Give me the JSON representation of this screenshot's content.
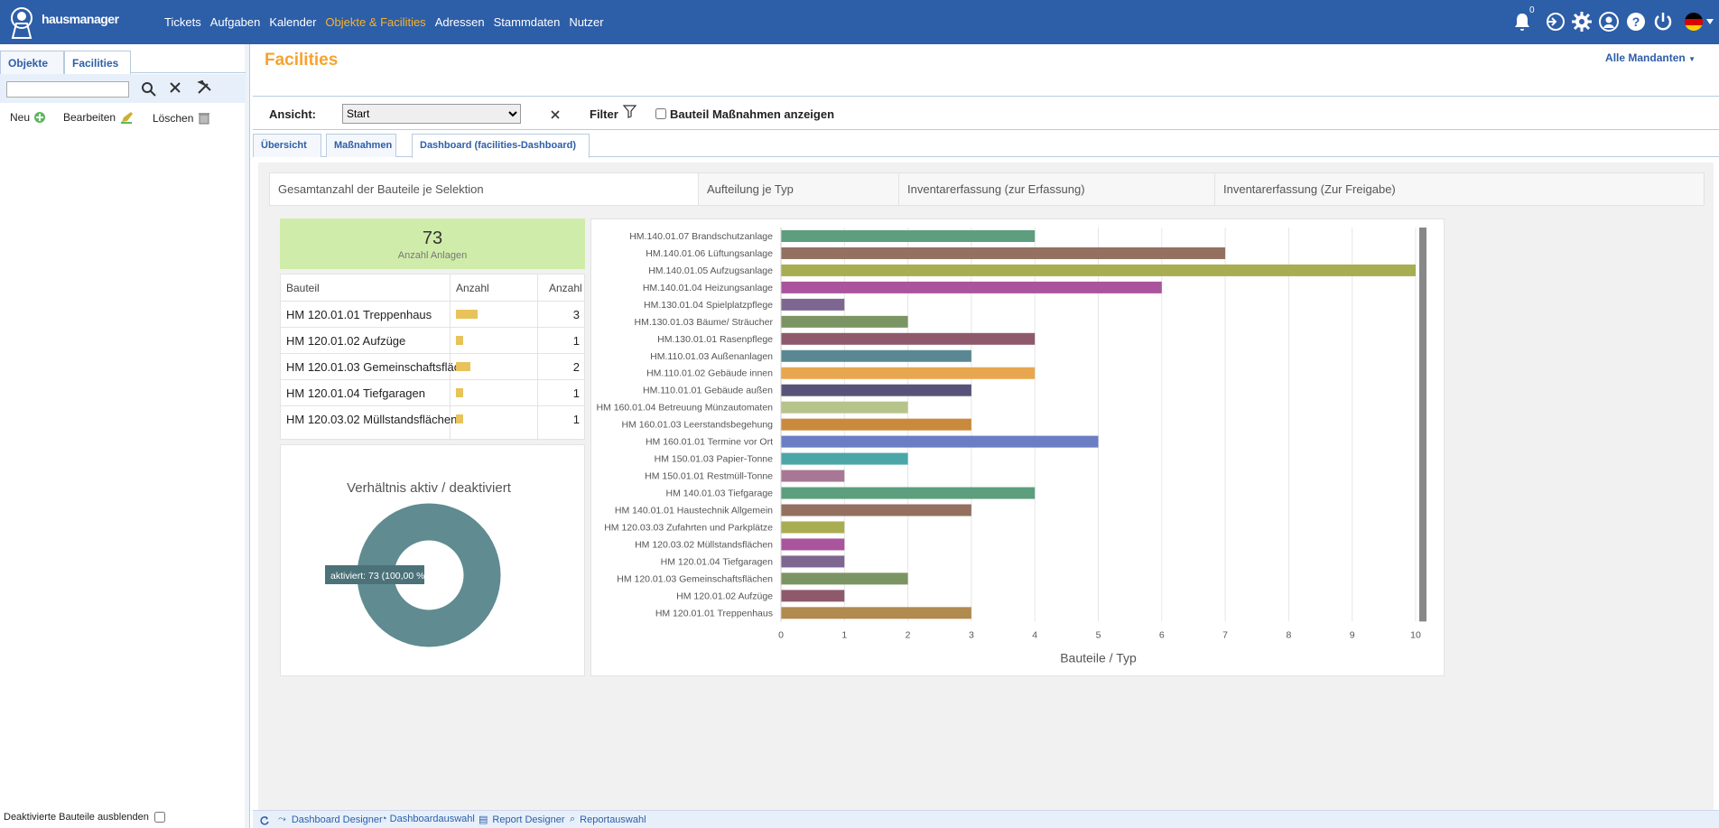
{
  "app": {
    "brand": "hausmanager"
  },
  "nav": {
    "items": [
      {
        "label": "Tickets",
        "active": false
      },
      {
        "label": "Aufgaben",
        "active": false
      },
      {
        "label": "Kalender",
        "active": false
      },
      {
        "label": "Objekte & Facilities",
        "active": true
      },
      {
        "label": "Adressen",
        "active": false
      },
      {
        "label": "Stammdaten",
        "active": false
      },
      {
        "label": "Nutzer",
        "active": false
      }
    ],
    "notification_count": "0",
    "accent": "#f7b22d",
    "bg": "#2d5ea8"
  },
  "left": {
    "tabs": [
      "Objekte",
      "Facilities"
    ],
    "active_tab": "Facilities",
    "search_value": "",
    "actions": {
      "new": "Neu",
      "edit": "Bearbeiten",
      "delete": "Löschen"
    },
    "hide_deactivated_label": "Deaktivierte Bauteile ausblenden"
  },
  "main": {
    "title": "Facilities",
    "mandant": "Alle Mandanten",
    "view_label": "Ansicht:",
    "view_value": "Start",
    "filter_label": "Filter",
    "show_measures_label": "Bauteil Maßnahmen anzeigen",
    "tabs": [
      "Übersicht",
      "Maßnahmen",
      "Dashboard (facilities-Dashboard)"
    ],
    "active_tab": "Dashboard (facilities-Dashboard)"
  },
  "dashboard": {
    "tabs": [
      "Gesamtanzahl der Bauteile je Selektion",
      "Aufteilung je Typ",
      "Inventarerfassung (zur Erfassung)",
      "Inventarerfassung (Zur Freigabe)"
    ],
    "kpi": {
      "value": "73",
      "label": "Anzahl Anlagen"
    },
    "table": {
      "headers": [
        "Bauteil",
        "Anzahl",
        "Anzahl"
      ],
      "rows": [
        {
          "name": "HM 120.01.01 Treppenhaus",
          "count": 3
        },
        {
          "name": "HM 120.01.02 Aufzüge",
          "count": 1
        },
        {
          "name": "HM 120.01.03 Gemeinschaftsfläc...",
          "count": 2
        },
        {
          "name": "HM 120.01.04 Tiefgaragen",
          "count": 1
        },
        {
          "name": "HM 120.03.02 Müllstandsflächen",
          "count": 1
        }
      ],
      "bar_color": "#e8c25a",
      "bar_max": 10
    },
    "donut": {
      "title": "Verhältnis aktiv / deaktiviert",
      "tooltip": "aktiviert: 73 (100,00 %)",
      "color": "#5f8b91",
      "active_share": 1
    }
  },
  "chart_data": {
    "type": "bar",
    "orientation": "horizontal",
    "xlabel": "Bauteile / Typ",
    "xlim": [
      0,
      10
    ],
    "xticks": [
      0,
      1,
      2,
      3,
      4,
      5,
      6,
      7,
      8,
      9,
      10
    ],
    "grid": true,
    "categories": [
      "HM.140.01.07 Brandschutzanlage",
      "HM.140.01.06 Lüftungsanlage",
      "HM.140.01.05 Aufzugsanlage",
      "HM.140.01.04 Heizungsanlage",
      "HM.130.01.04 Spielplatzpflege",
      "HM.130.01.03 Bäume/ Sträucher",
      "HM.130.01.01 Rasenpflege",
      "HM.110.01.03 Außenanlagen",
      "HM.110.01.02 Gebäude innen",
      "HM.110.01.01 Gebäude außen",
      "HM 160.01.04 Betreuung Münzautomaten",
      "HM 160.01.03 Leerstandsbegehung",
      "HM 160.01.01 Termine vor Ort",
      "HM 150.01.03 Papier-Tonne",
      "HM 150.01.01 Restmüll-Tonne",
      "HM 140.01.03 Tiefgarage",
      "HM 140.01.01 Haustechnik Allgemein",
      "HM 120.03.03 Zufahrten und Parkplätze",
      "HM 120.03.02 Müllstandsflächen",
      "HM 120.01.04 Tiefgaragen",
      "HM 120.01.03 Gemeinschaftsflächen",
      "HM 120.01.02 Aufzüge",
      "HM 120.01.01 Treppenhaus"
    ],
    "values": [
      4,
      7,
      10,
      6,
      1,
      2,
      4,
      3,
      4,
      3,
      2,
      3,
      5,
      2,
      1,
      4,
      3,
      1,
      1,
      1,
      2,
      1,
      3
    ],
    "colors": [
      "#5c9e7e",
      "#93705f",
      "#a8ad52",
      "#a9549c",
      "#7d6690",
      "#7b9463",
      "#8e5a6b",
      "#5a8892",
      "#e8a64e",
      "#575378",
      "#b6c48b",
      "#c98a3e",
      "#6b7ec4",
      "#4ba6a8",
      "#a87796",
      "#5c9e7e",
      "#93705f",
      "#a8ad52",
      "#a9549c",
      "#7d6690",
      "#7b9463",
      "#8e5a6b",
      "#b08a4f"
    ]
  },
  "footer": {
    "links": [
      "Dashboard Designer",
      "Dashboardauswahl",
      "Report Designer",
      "Reportauswahl"
    ]
  }
}
